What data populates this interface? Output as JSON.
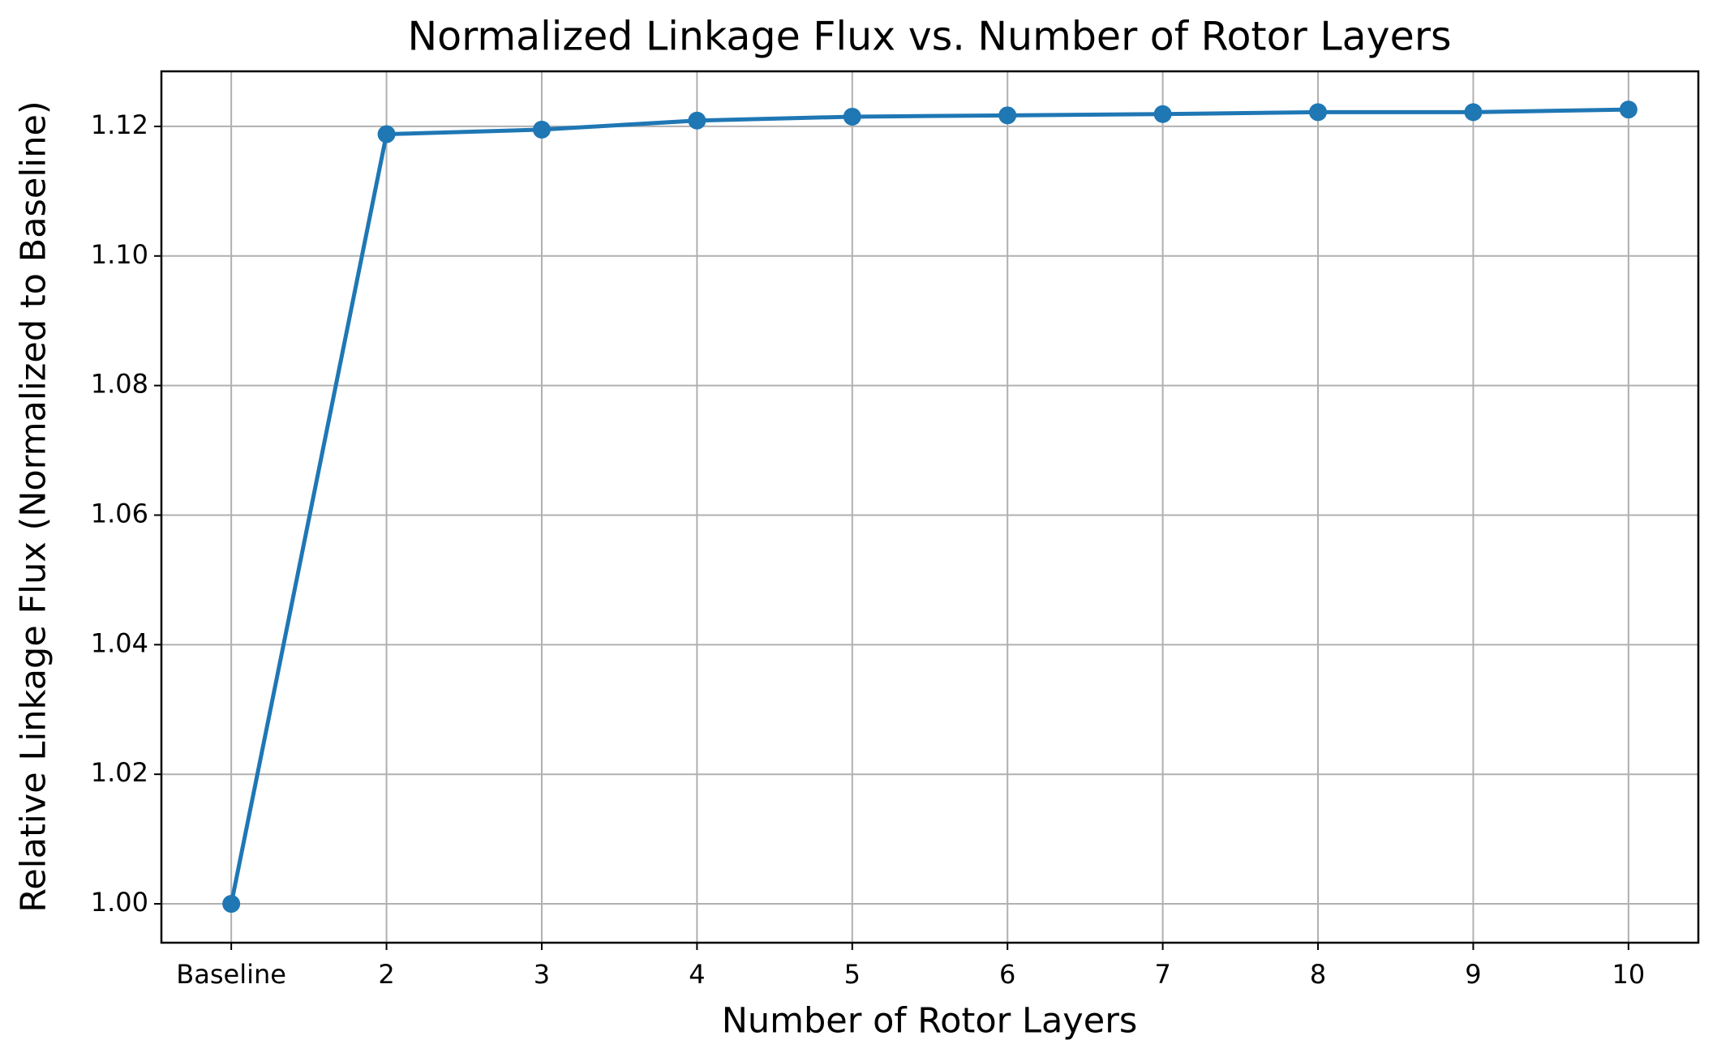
{
  "chart_data": {
    "type": "line",
    "title": "Normalized Linkage Flux vs. Number of Rotor Layers",
    "x_label": "Number of Rotor Layers",
    "y_label": "Relative Linkage Flux (Normalized to Baseline)",
    "categories": [
      "Baseline",
      "2",
      "3",
      "4",
      "5",
      "6",
      "7",
      "8",
      "9",
      "10"
    ],
    "series": [
      {
        "name": "Relative Linkage Flux",
        "color": "#1f77b4",
        "values": [
          1.0,
          1.1188,
          1.1195,
          1.1209,
          1.1215,
          1.1217,
          1.1219,
          1.1222,
          1.1222,
          1.1226
        ]
      }
    ],
    "ylim": [
      0.994,
      1.1285
    ],
    "yticks": [
      {
        "value": 1.0,
        "label": "1.00"
      },
      {
        "value": 1.02,
        "label": "1.02"
      },
      {
        "value": 1.04,
        "label": "1.04"
      },
      {
        "value": 1.06,
        "label": "1.06"
      },
      {
        "value": 1.08,
        "label": "1.08"
      },
      {
        "value": 1.1,
        "label": "1.10"
      },
      {
        "value": 1.12,
        "label": "1.12"
      }
    ],
    "grid": true,
    "markers": true
  }
}
